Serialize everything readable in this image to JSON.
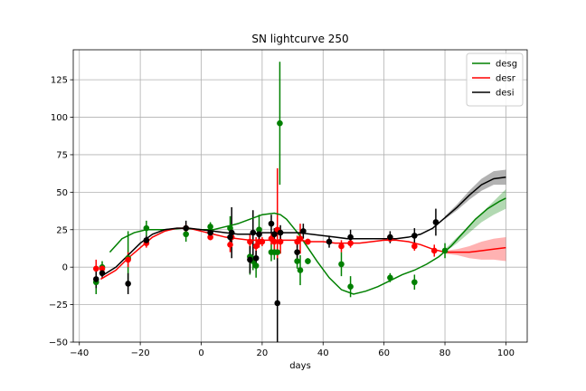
{
  "chart_data": {
    "type": "line",
    "title": "SN lightcurve 250",
    "xlabel": "days",
    "ylabel": "",
    "xlim": [
      -42,
      107
    ],
    "ylim": [
      -50,
      145
    ],
    "xticks": [
      -40,
      -20,
      0,
      20,
      40,
      60,
      80,
      100
    ],
    "yticks": [
      -50,
      -25,
      0,
      25,
      50,
      75,
      100,
      125
    ],
    "grid": true,
    "legend_position": "top-right",
    "series": [
      {
        "name": "desg",
        "color": "#008000",
        "curve_x": [
          -30,
          -26,
          -22,
          -18,
          -12,
          -6,
          0,
          4,
          8,
          12,
          16,
          20,
          24,
          26,
          28,
          30,
          32,
          34,
          38,
          42,
          46,
          50,
          54,
          58,
          62,
          66,
          70,
          74,
          78,
          82,
          86,
          90,
          94,
          98,
          100
        ],
        "curve_y": [
          10,
          19,
          23,
          25,
          25,
          26,
          25,
          25,
          27,
          29,
          32,
          35,
          36,
          35,
          32,
          27,
          22,
          16,
          4,
          -7,
          -15,
          -18,
          -16,
          -13,
          -9,
          -5,
          -2,
          2,
          7,
          14,
          23,
          32,
          39,
          44,
          46
        ],
        "band_x": [
          80,
          84,
          88,
          92,
          96,
          100
        ],
        "band_lo": [
          10,
          16,
          23,
          30,
          35,
          39
        ],
        "band_hi": [
          12,
          20,
          28,
          36,
          44,
          52
        ],
        "points": [
          {
            "x": -34.5,
            "y": -10,
            "err": 8
          },
          {
            "x": -32.5,
            "y": 0,
            "err": 4
          },
          {
            "x": -24,
            "y": 6,
            "err": 18
          },
          {
            "x": -18,
            "y": 26,
            "err": 5
          },
          {
            "x": -5,
            "y": 22,
            "err": 5
          },
          {
            "x": 3,
            "y": 27,
            "err": 3
          },
          {
            "x": 9.5,
            "y": 26,
            "err": 8
          },
          {
            "x": 16,
            "y": 7,
            "err": 12
          },
          {
            "x": 17,
            "y": 4,
            "err": 6
          },
          {
            "x": 18,
            "y": 1,
            "err": 8
          },
          {
            "x": 19,
            "y": 25,
            "err": 10
          },
          {
            "x": 23,
            "y": 10,
            "err": 6
          },
          {
            "x": 24,
            "y": 10,
            "err": 5
          },
          {
            "x": 25,
            "y": 10,
            "err": 8
          },
          {
            "x": 25.8,
            "y": 96,
            "err": 41
          },
          {
            "x": 31.5,
            "y": 4,
            "err": 5
          },
          {
            "x": 32.5,
            "y": -2,
            "err": 10
          },
          {
            "x": 35,
            "y": 4,
            "err": 2
          },
          {
            "x": 46,
            "y": 2,
            "err": 8
          },
          {
            "x": 49,
            "y": -13,
            "err": 7
          },
          {
            "x": 62,
            "y": -7,
            "err": 3
          },
          {
            "x": 70,
            "y": -10,
            "err": 5
          },
          {
            "x": 80,
            "y": 11,
            "err": 5
          }
        ]
      },
      {
        "name": "desr",
        "color": "#ff0000",
        "curve_x": [
          -33,
          -28,
          -24,
          -20,
          -16,
          -12,
          -8,
          -4,
          0,
          4,
          8,
          12,
          16,
          20,
          24,
          28,
          32,
          36,
          40,
          44,
          48,
          52,
          56,
          60,
          64,
          68,
          72,
          76,
          80,
          84,
          88,
          92,
          96,
          100
        ],
        "curve_y": [
          -8,
          -2,
          6,
          13,
          20,
          24,
          26,
          26,
          24,
          22,
          20,
          19,
          18,
          18,
          18,
          18,
          18,
          17,
          17,
          16,
          16,
          16,
          17,
          18,
          18,
          17,
          15,
          12,
          10,
          10,
          10,
          11,
          12,
          13
        ],
        "band_x": [
          80,
          84,
          88,
          92,
          96,
          100
        ],
        "band_lo": [
          9,
          8,
          6,
          5,
          5,
          4
        ],
        "band_hi": [
          11,
          12,
          14,
          17,
          19,
          20
        ],
        "points": [
          {
            "x": -34.5,
            "y": -1,
            "err": 6
          },
          {
            "x": -32.5,
            "y": -1,
            "err": 3
          },
          {
            "x": -24,
            "y": 5,
            "err": 5
          },
          {
            "x": -18,
            "y": 16,
            "err": 3
          },
          {
            "x": -5,
            "y": 26,
            "err": 3
          },
          {
            "x": 3,
            "y": 20,
            "err": 2
          },
          {
            "x": 9.5,
            "y": 15,
            "err": 5
          },
          {
            "x": 10,
            "y": 20,
            "err": 3
          },
          {
            "x": 16,
            "y": 17,
            "err": 5
          },
          {
            "x": 18,
            "y": 14,
            "err": 6
          },
          {
            "x": 19,
            "y": 17,
            "err": 4
          },
          {
            "x": 20,
            "y": 17,
            "err": 3
          },
          {
            "x": 23,
            "y": 19,
            "err": 4
          },
          {
            "x": 24,
            "y": 17,
            "err": 5
          },
          {
            "x": 25,
            "y": 25,
            "err": 41
          },
          {
            "x": 26,
            "y": 17,
            "err": 8
          },
          {
            "x": 31.5,
            "y": 17,
            "err": 4
          },
          {
            "x": 32.5,
            "y": 19,
            "err": 10
          },
          {
            "x": 35,
            "y": 17,
            "err": 2
          },
          {
            "x": 46,
            "y": 14,
            "err": 4
          },
          {
            "x": 49,
            "y": 16,
            "err": 3
          },
          {
            "x": 62,
            "y": 19,
            "err": 2
          },
          {
            "x": 70,
            "y": 14,
            "err": 3
          },
          {
            "x": 76.5,
            "y": 11,
            "err": 4
          }
        ]
      },
      {
        "name": "desi",
        "color": "#000000",
        "curve_x": [
          -32,
          -28,
          -24,
          -20,
          -16,
          -12,
          -8,
          -4,
          0,
          4,
          8,
          12,
          16,
          20,
          24,
          28,
          32,
          36,
          40,
          44,
          48,
          52,
          56,
          60,
          64,
          68,
          72,
          76,
          80,
          84,
          88,
          92,
          96,
          100
        ],
        "curve_y": [
          -5,
          0,
          8,
          16,
          22,
          25,
          26,
          26,
          25,
          24,
          23,
          22,
          22,
          23,
          23,
          23,
          23,
          22,
          21,
          20,
          19,
          19,
          19,
          19,
          19,
          20,
          22,
          26,
          33,
          40,
          48,
          55,
          59,
          60
        ],
        "band_x": [
          80,
          84,
          88,
          92,
          96,
          100
        ],
        "band_lo": [
          32,
          38,
          45,
          51,
          55,
          55
        ],
        "band_hi": [
          34,
          42,
          51,
          59,
          64,
          65
        ],
        "points": [
          {
            "x": -34.5,
            "y": -8,
            "err": 6
          },
          {
            "x": -32.5,
            "y": -4,
            "err": 3
          },
          {
            "x": -24,
            "y": -11,
            "err": 7
          },
          {
            "x": -18,
            "y": 18,
            "err": 3
          },
          {
            "x": -5,
            "y": 26,
            "err": 5
          },
          {
            "x": 3,
            "y": 23,
            "err": 3
          },
          {
            "x": 9.5,
            "y": 20,
            "err": 6
          },
          {
            "x": 10,
            "y": 23,
            "err": 17
          },
          {
            "x": 16,
            "y": 5,
            "err": 9
          },
          {
            "x": 17,
            "y": 23,
            "err": 15
          },
          {
            "x": 18,
            "y": 6,
            "err": 5
          },
          {
            "x": 19,
            "y": 22,
            "err": 5
          },
          {
            "x": 23,
            "y": 29,
            "err": 6
          },
          {
            "x": 24,
            "y": 22,
            "err": 4
          },
          {
            "x": 25,
            "y": -24,
            "err": 30
          },
          {
            "x": 26,
            "y": 23,
            "err": 5
          },
          {
            "x": 31.5,
            "y": 10,
            "err": 6
          },
          {
            "x": 33.5,
            "y": 24,
            "err": 5
          },
          {
            "x": 42,
            "y": 17,
            "err": 4
          },
          {
            "x": 49,
            "y": 20,
            "err": 5
          },
          {
            "x": 62,
            "y": 20,
            "err": 4
          },
          {
            "x": 70,
            "y": 21,
            "err": 5
          },
          {
            "x": 77,
            "y": 30,
            "err": 9
          }
        ]
      }
    ]
  }
}
